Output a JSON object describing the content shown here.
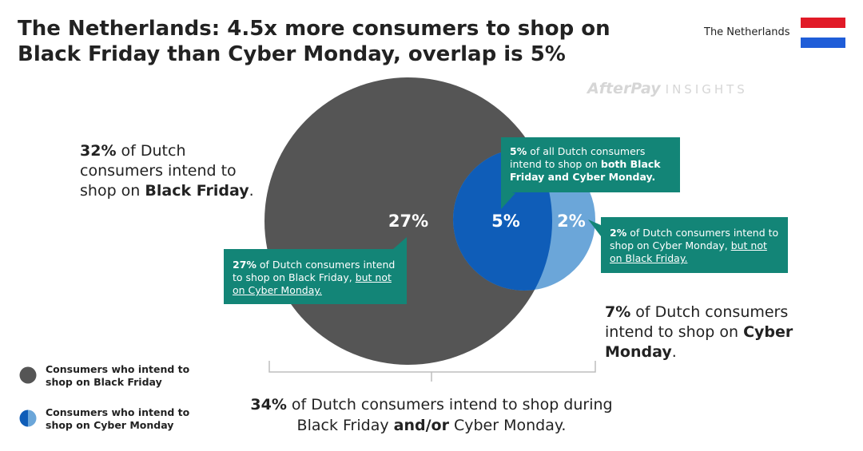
{
  "title": "The Netherlands: 4.5x more consumers to shop on Black Friday than Cyber Monday, overlap is 5%",
  "country_label": "The Netherlands",
  "flag_colors": [
    "#e11a27",
    "#ffffff",
    "#1f5dd8"
  ],
  "brand": {
    "name": "AfterPay",
    "suffix": "INSIGHTS"
  },
  "colors": {
    "black_friday": "#555555",
    "overlap": "#0f5db8",
    "cyber_monday_only": "#6ba6d9",
    "callout": "#138577"
  },
  "chart_data": {
    "type": "venn",
    "sets": [
      {
        "name": "Black Friday",
        "value": 32
      },
      {
        "name": "Cyber Monday",
        "value": 7
      }
    ],
    "regions": [
      {
        "region": "Black Friday only",
        "value": 27,
        "label": "27%"
      },
      {
        "region": "Both",
        "value": 5,
        "label": "5%"
      },
      {
        "region": "Cyber Monday only",
        "value": 2,
        "label": "2%"
      }
    ],
    "union": 34
  },
  "labels": {
    "bf_total": {
      "pct": "32%",
      "pre": " of Dutch consumers intend to shop on ",
      "bold": "Black Friday",
      "post": "."
    },
    "cm_total": {
      "pct": "7%",
      "pre": " of Dutch consumers intend to shop on ",
      "bold": "Cyber Monday",
      "post": "."
    },
    "union": {
      "pct": "34%",
      "pre": " of Dutch consumers intend to shop during Black Friday ",
      "bold": "and/or",
      "post": " Cyber Monday."
    }
  },
  "callouts": {
    "both": {
      "pct": "5%",
      "pre": " of all Dutch consumers intend to shop on ",
      "bold": "both Black Friday and Cyber Monday."
    },
    "bf_only": {
      "pct": "27%",
      "pre": " of Dutch consumers intend to shop on Black Friday, ",
      "under": "but not on Cyber Monday."
    },
    "cm_only": {
      "pct": "2%",
      "pre": " of Dutch consumers intend to shop on Cyber Monday, ",
      "under": "but not on Black Friday."
    }
  },
  "legend": [
    {
      "label": "Consumers who intend to shop on Black Friday",
      "icon": "grey-circle"
    },
    {
      "label": "Consumers who intend to shop on Cyber Monday",
      "icon": "split-blue-circle"
    }
  ]
}
